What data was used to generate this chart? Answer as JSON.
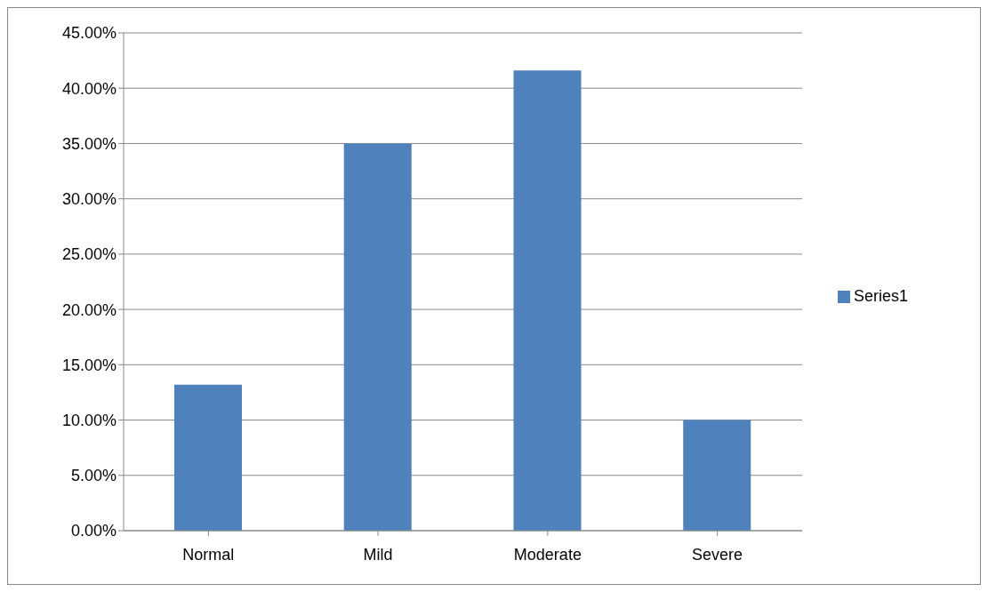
{
  "chart_data": {
    "type": "bar",
    "categories": [
      "Normal",
      "Mild",
      "Moderate",
      "Severe"
    ],
    "series": [
      {
        "name": "Series1",
        "color": "#4f81bd",
        "values": [
          13.2,
          35,
          41.6,
          10
        ]
      }
    ],
    "ylim": [
      0,
      45
    ],
    "yticks": [
      {
        "value": 0,
        "label": "0.00%"
      },
      {
        "value": 5,
        "label": "5.00%"
      },
      {
        "value": 10,
        "label": "10.00%"
      },
      {
        "value": 15,
        "label": "15.00%"
      },
      {
        "value": 20,
        "label": "20.00%"
      },
      {
        "value": 25,
        "label": "25.00%"
      },
      {
        "value": 30,
        "label": "30.00%"
      },
      {
        "value": 35,
        "label": "35.00%"
      },
      {
        "value": 40,
        "label": "40.00%"
      },
      {
        "value": 45,
        "label": "45.00%"
      }
    ],
    "grid": "y",
    "legend": "right"
  }
}
